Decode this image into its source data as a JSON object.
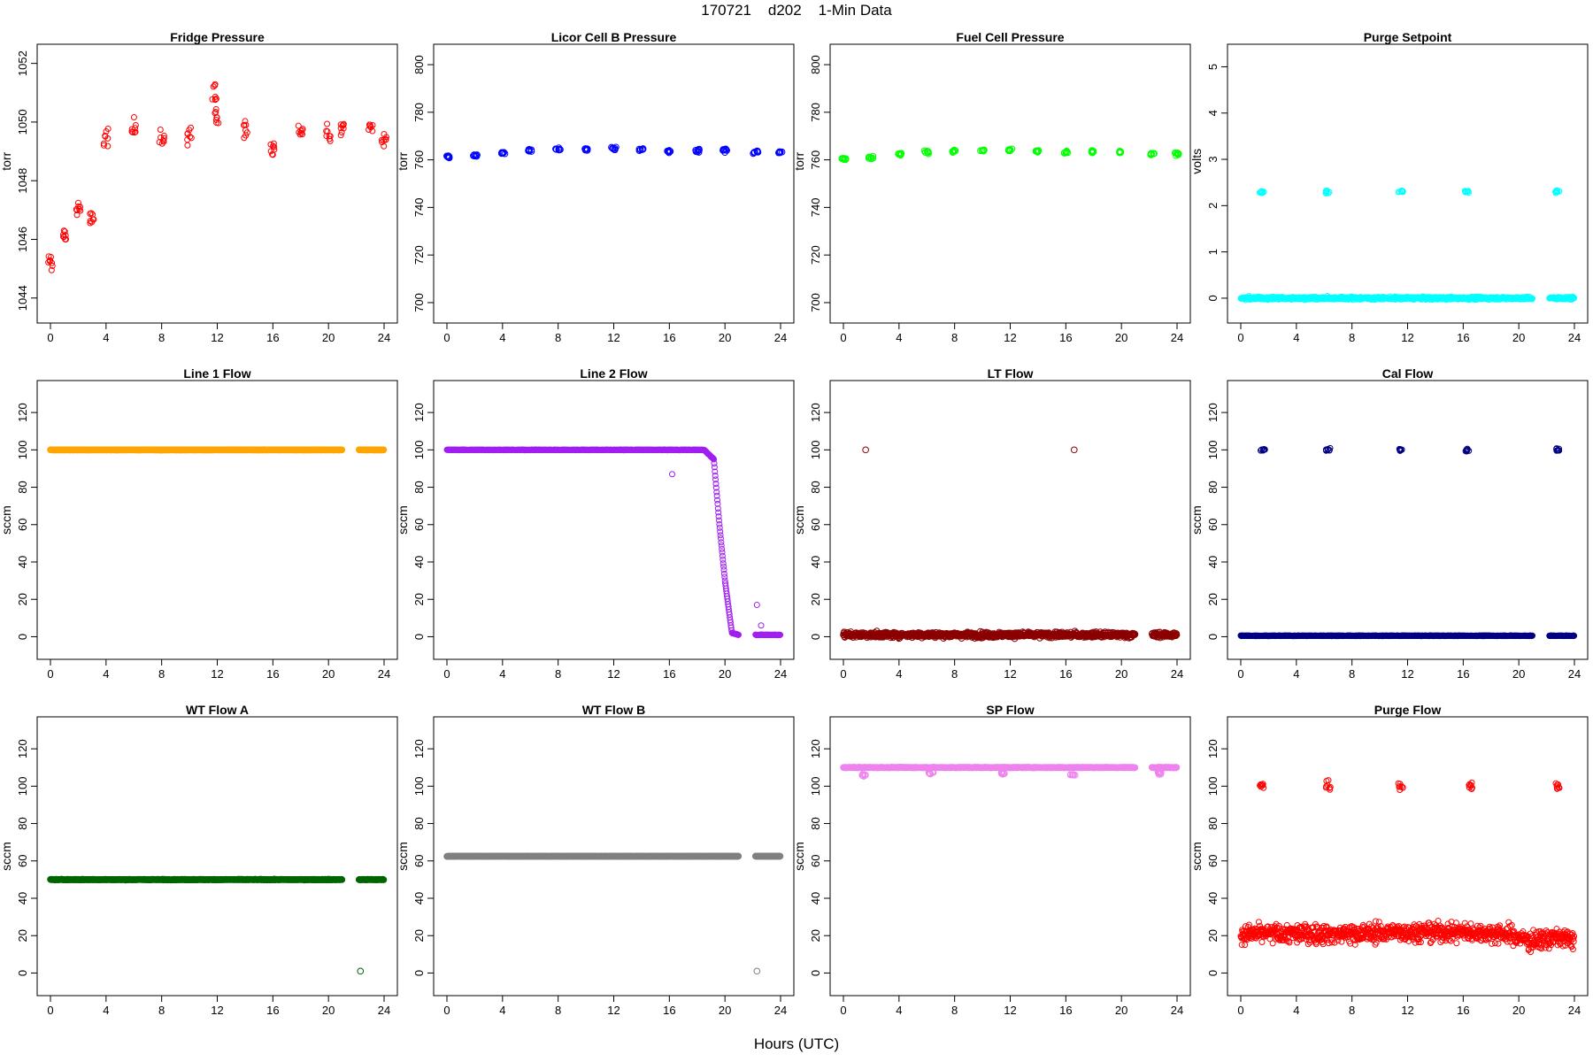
{
  "figure": {
    "title": "170721    d202    1-Min Data",
    "xlabel": "Hours (UTC)"
  },
  "chart_data": [
    {
      "type": "scatter",
      "title": "Fridge Pressure",
      "ylabel": "torr",
      "xlim": [
        0,
        24
      ],
      "ylim": [
        1043.6,
        1052.2
      ],
      "xticks": [
        0,
        4,
        8,
        12,
        16,
        20,
        24
      ],
      "yticks": [
        1044,
        1046,
        1048,
        1050,
        1052
      ],
      "color": "#ff0000",
      "marker": "open-circle",
      "series": [
        {
          "x": [
            0,
            1,
            2,
            3,
            4,
            6,
            8,
            10,
            11.8,
            12,
            14,
            16,
            18,
            20,
            21,
            22.5,
            23,
            24
          ],
          "y": [
            1045.2,
            1046.2,
            1047,
            1046.8,
            1049.4,
            1049.8,
            1049.4,
            1049.6,
            1051,
            1050.2,
            1049.8,
            1049.2,
            1049.6,
            1049.6,
            1049.8,
            null,
            1049.8,
            1049.5
          ]
        }
      ]
    },
    {
      "type": "scatter",
      "title": "Licor Cell B Pressure",
      "ylabel": "torr",
      "xlim": [
        0,
        24
      ],
      "ylim": [
        697,
        803
      ],
      "xticks": [
        0,
        4,
        8,
        12,
        16,
        20,
        24
      ],
      "yticks": [
        700,
        720,
        740,
        760,
        780,
        800
      ],
      "color": "#0000ff",
      "marker": "filled-dense",
      "series": [
        {
          "x": [
            0,
            2,
            4,
            6,
            8,
            10,
            12,
            14,
            16,
            18,
            20,
            21,
            22.2,
            24
          ],
          "y": [
            761.2,
            762,
            763,
            764,
            764.3,
            764.4,
            764.6,
            764.3,
            763.6,
            763.8,
            764,
            null,
            763.4,
            763.2
          ]
        }
      ]
    },
    {
      "type": "scatter",
      "title": "Fuel Cell Pressure",
      "ylabel": "torr",
      "xlim": [
        0,
        24
      ],
      "ylim": [
        697,
        803
      ],
      "xticks": [
        0,
        4,
        8,
        12,
        16,
        20,
        24
      ],
      "yticks": [
        700,
        720,
        740,
        760,
        780,
        800
      ],
      "color": "#00ff00",
      "marker": "filled-dense",
      "series": [
        {
          "x": [
            0,
            2,
            4,
            6,
            8,
            10,
            12,
            14,
            16,
            18,
            20,
            21,
            22.2,
            24
          ],
          "y": [
            760.3,
            761,
            762.3,
            763.3,
            763.8,
            764,
            764.2,
            763.6,
            763,
            763.2,
            763.4,
            null,
            762.6,
            762.5
          ]
        }
      ]
    },
    {
      "type": "scatter",
      "title": "Purge Setpoint",
      "ylabel": "volts",
      "xlim": [
        0,
        24
      ],
      "ylim": [
        -0.25,
        5.2
      ],
      "xticks": [
        0,
        4,
        8,
        12,
        16,
        20,
        24
      ],
      "yticks": [
        0,
        1,
        2,
        3,
        4,
        5
      ],
      "color": "#00ffff",
      "marker": "open-circle",
      "series": [
        {
          "x": [
            0,
            21,
            22.2,
            24
          ],
          "y": [
            0,
            0,
            0,
            0
          ]
        },
        {
          "x": [
            1.5,
            6.2,
            11.5,
            16.3,
            22.8
          ],
          "y": [
            2.3,
            2.3,
            2.3,
            2.3,
            2.3
          ]
        }
      ]
    },
    {
      "type": "scatter",
      "title": "Line 1 Flow",
      "ylabel": "sccm",
      "xlim": [
        0,
        24
      ],
      "ylim": [
        -5,
        130
      ],
      "xticks": [
        0,
        4,
        8,
        12,
        16,
        20,
        24
      ],
      "yticks": [
        0,
        20,
        40,
        60,
        80,
        100,
        120
      ],
      "color": "#ffa500",
      "marker": "filled-dense",
      "series": [
        {
          "x": [
            0,
            21,
            22.2,
            24
          ],
          "y": [
            100,
            100,
            100,
            100
          ]
        }
      ]
    },
    {
      "type": "scatter",
      "title": "Line 2 Flow",
      "ylabel": "sccm",
      "xlim": [
        0,
        24
      ],
      "ylim": [
        -5,
        130
      ],
      "xticks": [
        0,
        4,
        8,
        12,
        16,
        20,
        24
      ],
      "yticks": [
        0,
        20,
        40,
        60,
        80,
        100,
        120
      ],
      "color": "#a020f0",
      "marker": "open-circle",
      "series": [
        {
          "x": [
            0,
            18.5,
            19.2,
            19.6,
            20,
            20.5,
            21,
            22.2,
            24
          ],
          "y": [
            100,
            100,
            95,
            60,
            30,
            2,
            1,
            1,
            1
          ]
        },
        {
          "x": [
            16.2,
            22.3,
            22.6
          ],
          "y": [
            87,
            17,
            6
          ]
        }
      ]
    },
    {
      "type": "scatter",
      "title": "LT Flow",
      "ylabel": "sccm",
      "xlim": [
        0,
        24
      ],
      "ylim": [
        -5,
        130
      ],
      "xticks": [
        0,
        4,
        8,
        12,
        16,
        20,
        24
      ],
      "yticks": [
        0,
        20,
        40,
        60,
        80,
        100,
        120
      ],
      "color": "#8b0000",
      "marker": "open-circle",
      "series": [
        {
          "x": [
            0,
            21,
            22.2,
            24
          ],
          "y": [
            1,
            1,
            1,
            1
          ]
        },
        {
          "x": [
            1.6,
            16.6
          ],
          "y": [
            100,
            100
          ]
        }
      ]
    },
    {
      "type": "scatter",
      "title": "Cal Flow",
      "ylabel": "sccm",
      "xlim": [
        0,
        24
      ],
      "ylim": [
        -5,
        130
      ],
      "xticks": [
        0,
        4,
        8,
        12,
        16,
        20,
        24
      ],
      "yticks": [
        0,
        20,
        40,
        60,
        80,
        100,
        120
      ],
      "color": "#000080",
      "marker": "open-circle",
      "series": [
        {
          "x": [
            0,
            21,
            22.2,
            24
          ],
          "y": [
            0.5,
            0.5,
            0.5,
            0.5
          ]
        },
        {
          "x": [
            1.6,
            6.3,
            11.5,
            16.3,
            22.8
          ],
          "y": [
            100,
            100,
            100,
            100,
            100
          ]
        }
      ]
    },
    {
      "type": "scatter",
      "title": "WT Flow A",
      "ylabel": "sccm",
      "xlim": [
        0,
        24
      ],
      "ylim": [
        -5,
        130
      ],
      "xticks": [
        0,
        4,
        8,
        12,
        16,
        20,
        24
      ],
      "yticks": [
        0,
        20,
        40,
        60,
        80,
        100,
        120
      ],
      "color": "#006400",
      "marker": "filled-dense",
      "series": [
        {
          "x": [
            0,
            21,
            22.2,
            24
          ],
          "y": [
            50,
            50,
            50,
            50
          ]
        },
        {
          "x": [
            22.3
          ],
          "y": [
            1
          ]
        }
      ]
    },
    {
      "type": "scatter",
      "title": "WT Flow B",
      "ylabel": "sccm",
      "xlim": [
        0,
        24
      ],
      "ylim": [
        -5,
        130
      ],
      "xticks": [
        0,
        4,
        8,
        12,
        16,
        20,
        24
      ],
      "yticks": [
        0,
        20,
        40,
        60,
        80,
        100,
        120
      ],
      "color": "#808080",
      "marker": "filled-dense",
      "series": [
        {
          "x": [
            0,
            21,
            22.2,
            24
          ],
          "y": [
            62.5,
            62.5,
            62.5,
            62.5
          ]
        },
        {
          "x": [
            22.3
          ],
          "y": [
            1
          ]
        }
      ]
    },
    {
      "type": "scatter",
      "title": "SP Flow",
      "ylabel": "sccm",
      "xlim": [
        0,
        24
      ],
      "ylim": [
        -5,
        130
      ],
      "xticks": [
        0,
        4,
        8,
        12,
        16,
        20,
        24
      ],
      "yticks": [
        0,
        20,
        40,
        60,
        80,
        100,
        120
      ],
      "color": "#ee82ee",
      "marker": "filled-dense",
      "series": [
        {
          "x": [
            0,
            21,
            22.2,
            24
          ],
          "y": [
            110,
            110,
            110,
            110
          ]
        },
        {
          "x": [
            1.5,
            6.3,
            11.5,
            16.5,
            22.8
          ],
          "y": [
            106,
            107,
            107,
            106,
            107
          ]
        }
      ]
    },
    {
      "type": "scatter",
      "title": "Purge Flow",
      "ylabel": "sccm",
      "xlim": [
        0,
        24
      ],
      "ylim": [
        -5,
        130
      ],
      "xticks": [
        0,
        4,
        8,
        12,
        16,
        20,
        24
      ],
      "yticks": [
        0,
        20,
        40,
        60,
        80,
        100,
        120
      ],
      "color": "#ff0000",
      "marker": "open-circle",
      "series": [
        {
          "x": [
            0,
            4,
            8,
            12,
            16,
            19,
            21,
            22.5,
            24
          ],
          "y": [
            21,
            21,
            21,
            22,
            22,
            21,
            17,
            19,
            18
          ]
        },
        {
          "x": [
            1.5,
            6.3,
            11.5,
            16.5,
            22.8
          ],
          "y": [
            100,
            100,
            100,
            100,
            100
          ]
        }
      ]
    }
  ]
}
